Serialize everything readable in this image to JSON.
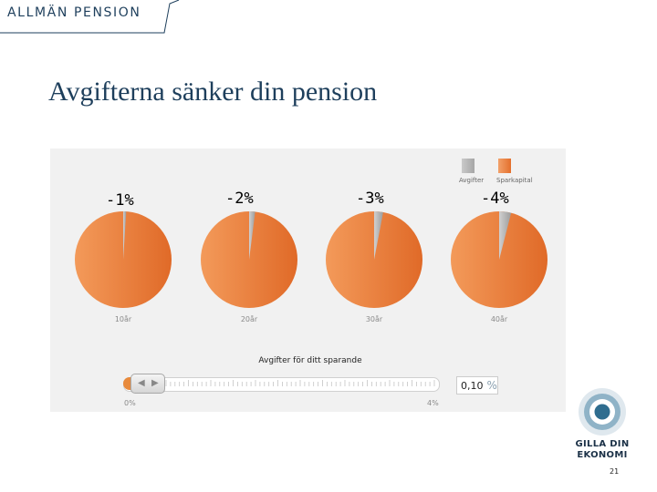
{
  "header": {
    "text": "ALLMÄN PENSION"
  },
  "title": "Avgifterna sänker din pension",
  "legend": {
    "fees": "Avgifter",
    "capital": "Sparkapital"
  },
  "pies": [
    {
      "pct_label": "-1%",
      "year_label": "10år",
      "fee_fraction": 0.01
    },
    {
      "pct_label": "-2%",
      "year_label": "20år",
      "fee_fraction": 0.02
    },
    {
      "pct_label": "-3%",
      "year_label": "30år",
      "fee_fraction": 0.03
    },
    {
      "pct_label": "-4%",
      "year_label": "40år",
      "fee_fraction": 0.04
    }
  ],
  "slider": {
    "label": "Avgifter för ditt sparande",
    "min_label": "0%",
    "max_label": "4%",
    "value": "0,10",
    "unit": "%",
    "level_fraction": 0.025
  },
  "logo": {
    "line1": "GILLA DIN",
    "line2": "EKONOMI"
  },
  "page_number": "21",
  "colors": {
    "orange": "#e8803a",
    "grey": "#b8b8b8",
    "navy": "#1e3f5c",
    "logo_blue": "#2f6d8f"
  }
}
